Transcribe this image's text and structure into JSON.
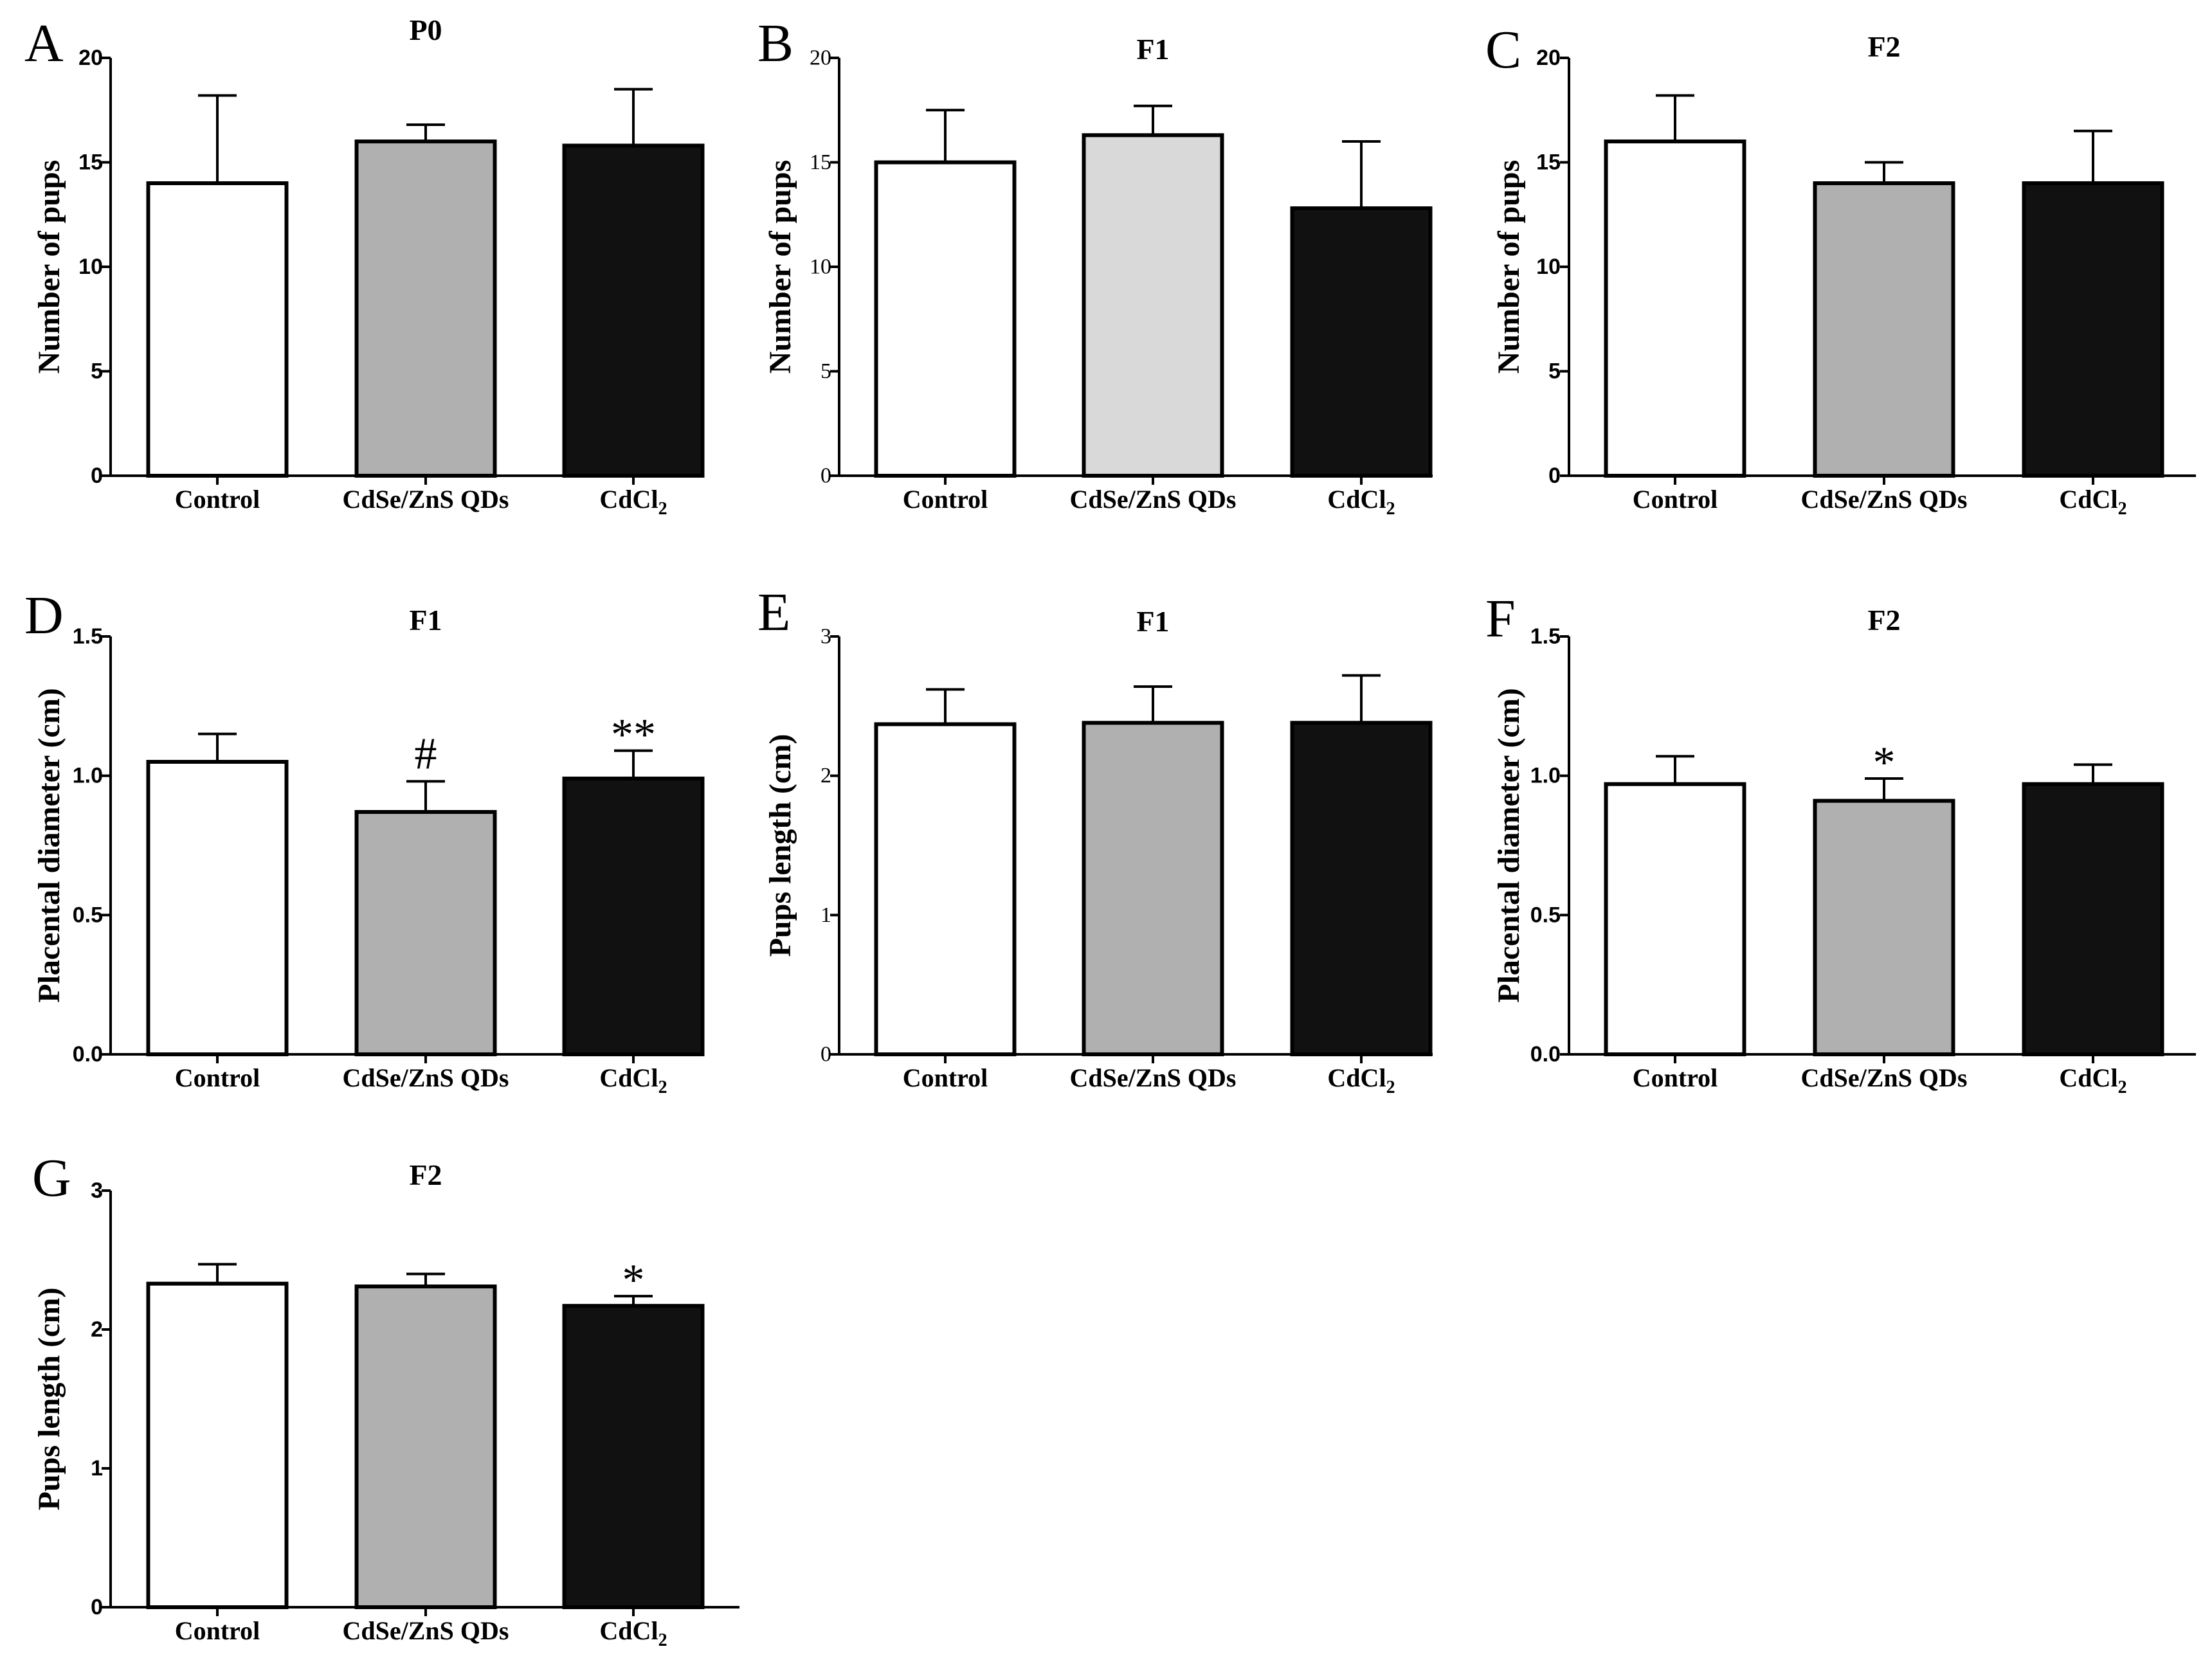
{
  "chart_data": [
    {
      "type": "bar",
      "panel_label": "A",
      "title": "P0",
      "xlabel": "",
      "ylabel": "Number of pups",
      "ylim": [
        0,
        20
      ],
      "yticks": [
        "0",
        "5",
        "10",
        "15",
        "20"
      ],
      "categories": [
        "Control",
        "CdSe/ZnS QDs",
        "CdCl2"
      ],
      "values": [
        14.0,
        16.0,
        15.8
      ],
      "errors": [
        4.2,
        0.8,
        2.7
      ],
      "significance": [
        "",
        "",
        ""
      ],
      "bar_colors": [
        "#ffffff",
        "#b0b0b0",
        "#111111"
      ]
    },
    {
      "type": "bar",
      "panel_label": "B",
      "title": "F1",
      "xlabel": "",
      "ylabel": "Number of pups",
      "ylim": [
        0,
        20
      ],
      "yticks": [
        "0",
        "5",
        "10",
        "15",
        "20"
      ],
      "categories": [
        "Control",
        "CdSe/ZnS QDs",
        "CdCl2"
      ],
      "values": [
        15.0,
        16.3,
        12.8
      ],
      "errors": [
        2.5,
        1.4,
        3.2
      ],
      "significance": [
        "",
        "",
        ""
      ],
      "bar_colors": [
        "#ffffff",
        "#d9d9d9",
        "#111111"
      ]
    },
    {
      "type": "bar",
      "panel_label": "C",
      "title": "F2",
      "xlabel": "",
      "ylabel": "Number of pups",
      "ylim": [
        0,
        20
      ],
      "yticks": [
        "0",
        "5",
        "10",
        "15",
        "20"
      ],
      "categories": [
        "Control",
        "CdSe/ZnS QDs",
        "CdCl2"
      ],
      "values": [
        16.0,
        14.0,
        14.0
      ],
      "errors": [
        2.2,
        1.0,
        2.5
      ],
      "significance": [
        "",
        "",
        ""
      ],
      "bar_colors": [
        "#ffffff",
        "#b0b0b0",
        "#111111"
      ]
    },
    {
      "type": "bar",
      "panel_label": "D",
      "title": "F1",
      "xlabel": "",
      "ylabel": "Placental diameter (cm)",
      "ylim": [
        0,
        1.5
      ],
      "yticks": [
        "0.0",
        "0.5",
        "1.0",
        "1.5"
      ],
      "categories": [
        "Control",
        "CdSe/ZnS QDs",
        "CdCl2"
      ],
      "values": [
        1.05,
        0.87,
        0.99
      ],
      "errors": [
        0.1,
        0.11,
        0.1
      ],
      "significance": [
        "",
        "#",
        "**"
      ],
      "bar_colors": [
        "#ffffff",
        "#b0b0b0",
        "#111111"
      ]
    },
    {
      "type": "bar",
      "panel_label": "E",
      "title": "F1",
      "xlabel": "",
      "ylabel": "Pups length (cm)",
      "ylim": [
        0,
        3
      ],
      "yticks": [
        "0",
        "1",
        "2",
        "3"
      ],
      "categories": [
        "Control",
        "CdSe/ZnS QDs",
        "CdCl2"
      ],
      "values": [
        2.37,
        2.38,
        2.38
      ],
      "errors": [
        0.25,
        0.26,
        0.34
      ],
      "significance": [
        "",
        "",
        ""
      ],
      "bar_colors": [
        "#ffffff",
        "#b0b0b0",
        "#111111"
      ]
    },
    {
      "type": "bar",
      "panel_label": "F",
      "title": "F2",
      "xlabel": "",
      "ylabel": "Placental diameter (cm)",
      "ylim": [
        0,
        1.5
      ],
      "yticks": [
        "0.0",
        "0.5",
        "1.0",
        "1.5"
      ],
      "categories": [
        "Control",
        "CdSe/ZnS QDs",
        "CdCl2"
      ],
      "values": [
        0.97,
        0.91,
        0.97
      ],
      "errors": [
        0.1,
        0.08,
        0.07
      ],
      "significance": [
        "",
        "*",
        ""
      ],
      "bar_colors": [
        "#ffffff",
        "#b0b0b0",
        "#111111"
      ]
    },
    {
      "type": "bar",
      "panel_label": "G",
      "title": "F2",
      "xlabel": "",
      "ylabel": "Pups length (cm)",
      "ylim": [
        0,
        3
      ],
      "yticks": [
        "0",
        "1",
        "2",
        "3"
      ],
      "categories": [
        "Control",
        "CdSe/ZnS QDs",
        "CdCl2"
      ],
      "values": [
        2.33,
        2.31,
        2.17
      ],
      "errors": [
        0.14,
        0.09,
        0.07
      ],
      "significance": [
        "",
        "",
        "*"
      ],
      "bar_colors": [
        "#ffffff",
        "#b0b0b0",
        "#111111"
      ]
    }
  ]
}
